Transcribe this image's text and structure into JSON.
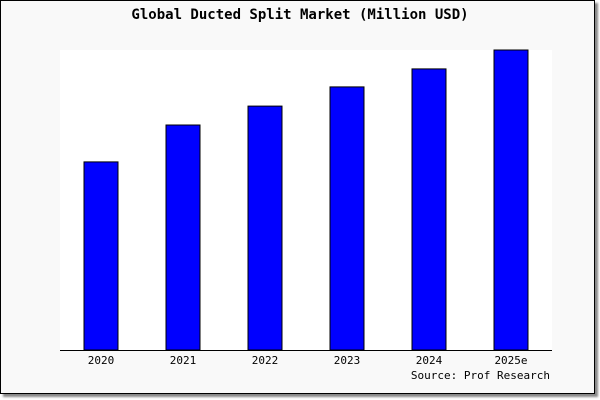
{
  "chart_data": {
    "type": "bar",
    "title": "Global Ducted Split Market (Million USD)",
    "categories": [
      "2020",
      "2021",
      "2022",
      "2023",
      "2024",
      "2025e"
    ],
    "values": [
      62.7,
      75.0,
      81.3,
      87.7,
      93.7,
      100.0
    ],
    "value_note": "relative bar heights, no value axis printed",
    "xlabel": "",
    "ylabel": "",
    "ylim": [
      0,
      100
    ],
    "grid": false,
    "source": "Source: Prof Research",
    "colors": {
      "bar": "#0000ff",
      "bar_outline": "#000000",
      "plot_background": "#ffffff",
      "background": "#f9f9f9"
    }
  }
}
